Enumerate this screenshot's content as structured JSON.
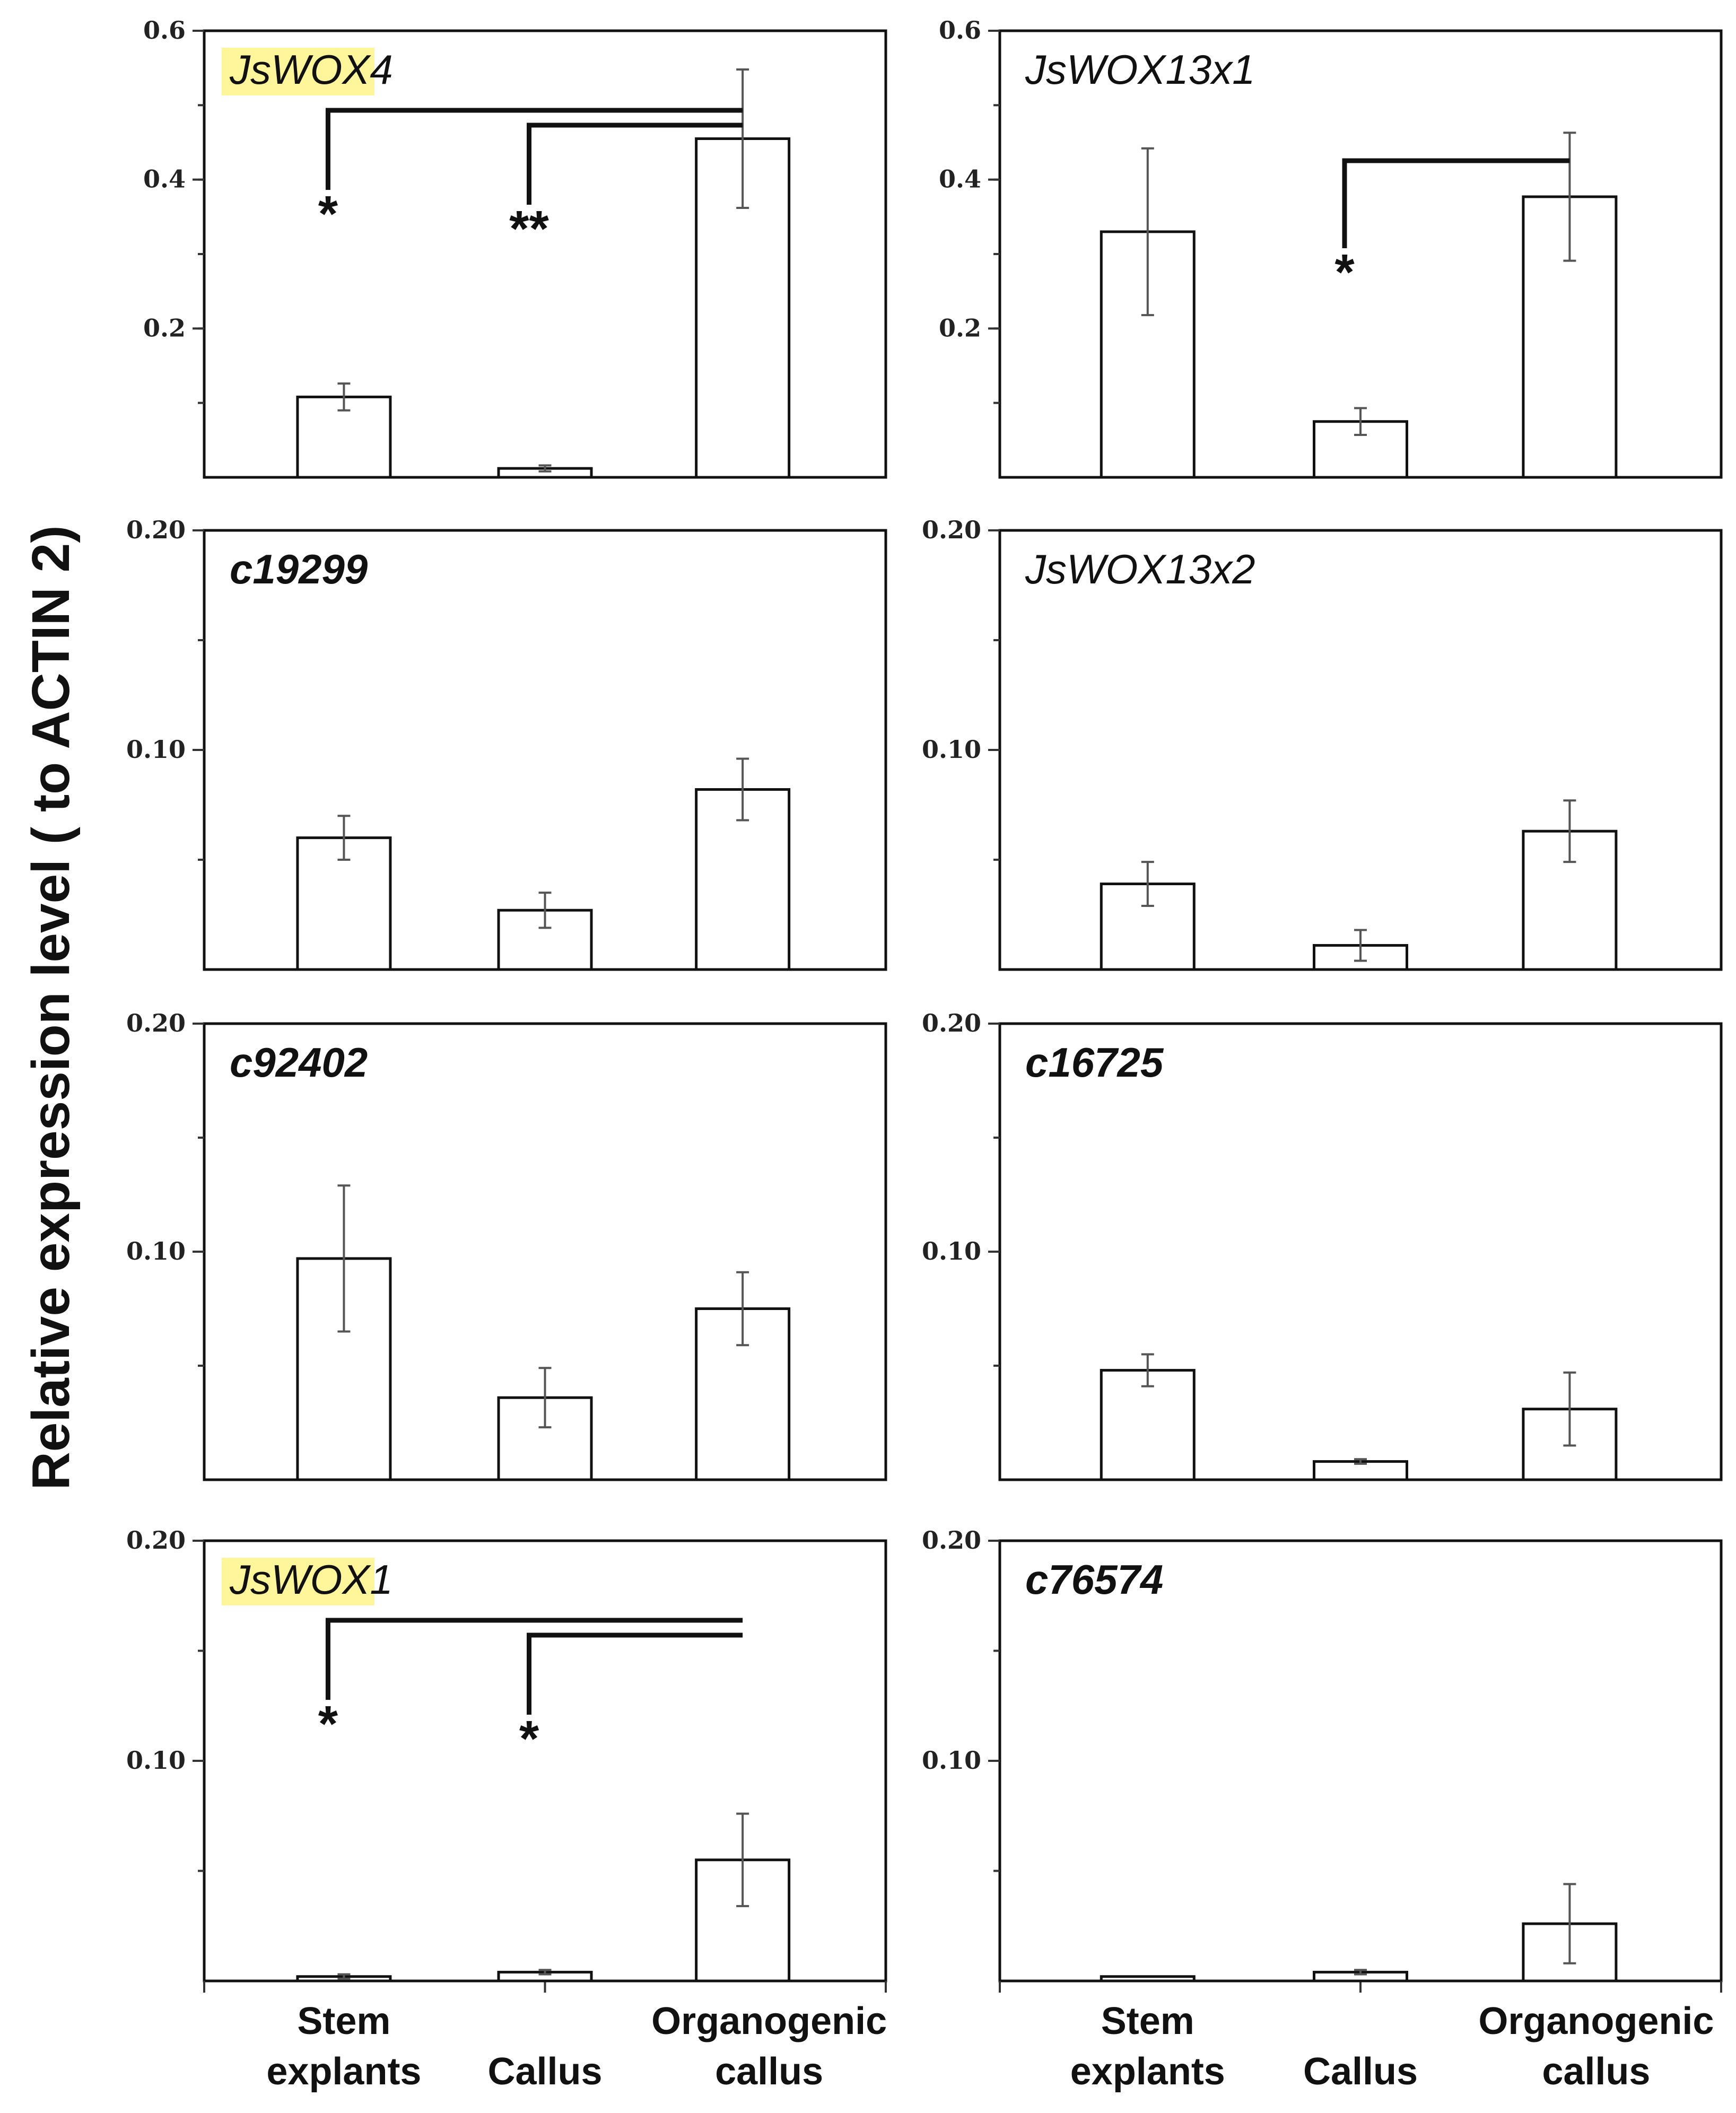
{
  "figure": {
    "ylabel": "Relative expression level ( to ACTIN 2)",
    "categories_left": [
      [
        "Stem",
        "explants"
      ],
      [
        "Callus"
      ],
      [
        "Organogenic",
        "callus"
      ]
    ],
    "categories_right": [
      [
        "Stem",
        "explants"
      ],
      [
        "Callus"
      ],
      [
        "Organogenic",
        "callus"
      ]
    ],
    "highlight_color": "#fff59a"
  },
  "chart_data": [
    {
      "type": "bar",
      "title": "JsWOX4",
      "highlight": true,
      "categories": [
        "Stem explants",
        "Callus",
        "Organogenic callus"
      ],
      "values": [
        0.108,
        0.012,
        0.455
      ],
      "errors": [
        0.018,
        0.004,
        0.093
      ],
      "ylim": [
        0,
        0.6
      ],
      "yticks": [
        0.2,
        0.4,
        0.6
      ],
      "ytick_labels": [
        "0.2",
        "0.4",
        "0.6"
      ],
      "minor_step": 0.1,
      "significance": [
        {
          "from": 0,
          "to": 2,
          "label": "*"
        },
        {
          "from": 1,
          "to": 2,
          "label": "**"
        }
      ]
    },
    {
      "type": "bar",
      "title": "JsWOX13x1",
      "highlight": false,
      "categories": [
        "Stem explants",
        "Callus",
        "Organogenic callus"
      ],
      "values": [
        0.33,
        0.075,
        0.377
      ],
      "errors": [
        0.112,
        0.018,
        0.086
      ],
      "ylim": [
        0,
        0.6
      ],
      "yticks": [
        0.2,
        0.4,
        0.6
      ],
      "ytick_labels": [
        "0.2",
        "0.4",
        "0.6"
      ],
      "minor_step": 0.1,
      "significance": [
        {
          "from": 1,
          "to": 2,
          "label": "*"
        }
      ]
    },
    {
      "type": "bar",
      "title": "c19299",
      "highlight": false,
      "bold": true,
      "categories": [
        "Stem explants",
        "Callus",
        "Organogenic callus"
      ],
      "values": [
        0.06,
        0.027,
        0.082
      ],
      "errors": [
        0.01,
        0.008,
        0.014
      ],
      "ylim": [
        0,
        0.2
      ],
      "yticks": [
        0.1,
        0.2
      ],
      "ytick_labels": [
        "0.10",
        "0.20"
      ],
      "minor_step": 0.05,
      "significance": []
    },
    {
      "type": "bar",
      "title": "JsWOX13x2",
      "highlight": false,
      "categories": [
        "Stem explants",
        "Callus",
        "Organogenic callus"
      ],
      "values": [
        0.039,
        0.011,
        0.063
      ],
      "errors": [
        0.01,
        0.007,
        0.014
      ],
      "ylim": [
        0,
        0.2
      ],
      "yticks": [
        0.1,
        0.2
      ],
      "ytick_labels": [
        "0.10",
        "0.20"
      ],
      "minor_step": 0.05,
      "significance": []
    },
    {
      "type": "bar",
      "title": "c92402",
      "highlight": false,
      "bold": true,
      "categories": [
        "Stem explants",
        "Callus",
        "Organogenic callus"
      ],
      "values": [
        0.097,
        0.036,
        0.075
      ],
      "errors": [
        0.032,
        0.013,
        0.016
      ],
      "ylim": [
        0,
        0.2
      ],
      "yticks": [
        0.1,
        0.2
      ],
      "ytick_labels": [
        "0.10",
        "0.20"
      ],
      "minor_step": 0.05,
      "significance": []
    },
    {
      "type": "bar",
      "title": "c16725",
      "highlight": false,
      "bold": true,
      "categories": [
        "Stem explants",
        "Callus",
        "Organogenic callus"
      ],
      "values": [
        0.048,
        0.008,
        0.031
      ],
      "errors": [
        0.007,
        0.001,
        0.016
      ],
      "ylim": [
        0,
        0.2
      ],
      "yticks": [
        0.1,
        0.2
      ],
      "ytick_labels": [
        "0.10",
        "0.20"
      ],
      "minor_step": 0.05,
      "significance": []
    },
    {
      "type": "bar",
      "title": "JsWOX1",
      "highlight": true,
      "categories": [
        "Stem explants",
        "Callus",
        "Organogenic callus"
      ],
      "values": [
        0.002,
        0.004,
        0.055
      ],
      "errors": [
        0.001,
        0.001,
        0.021
      ],
      "ylim": [
        0,
        0.2
      ],
      "yticks": [
        0.1,
        0.2
      ],
      "ytick_labels": [
        "0.10",
        "0.20"
      ],
      "minor_step": 0.05,
      "significance": [
        {
          "from": 0,
          "to": 2,
          "label": "*"
        },
        {
          "from": 1,
          "to": 2,
          "label": "*"
        }
      ]
    },
    {
      "type": "bar",
      "title": "c76574",
      "highlight": false,
      "bold": true,
      "categories": [
        "Stem explants",
        "Callus",
        "Organogenic callus"
      ],
      "values": [
        0.002,
        0.004,
        0.026
      ],
      "errors": [
        0.0,
        0.001,
        0.018
      ],
      "ylim": [
        0,
        0.2
      ],
      "yticks": [
        0.1,
        0.2
      ],
      "ytick_labels": [
        "0.10",
        "0.20"
      ],
      "minor_step": 0.05,
      "significance": []
    }
  ]
}
